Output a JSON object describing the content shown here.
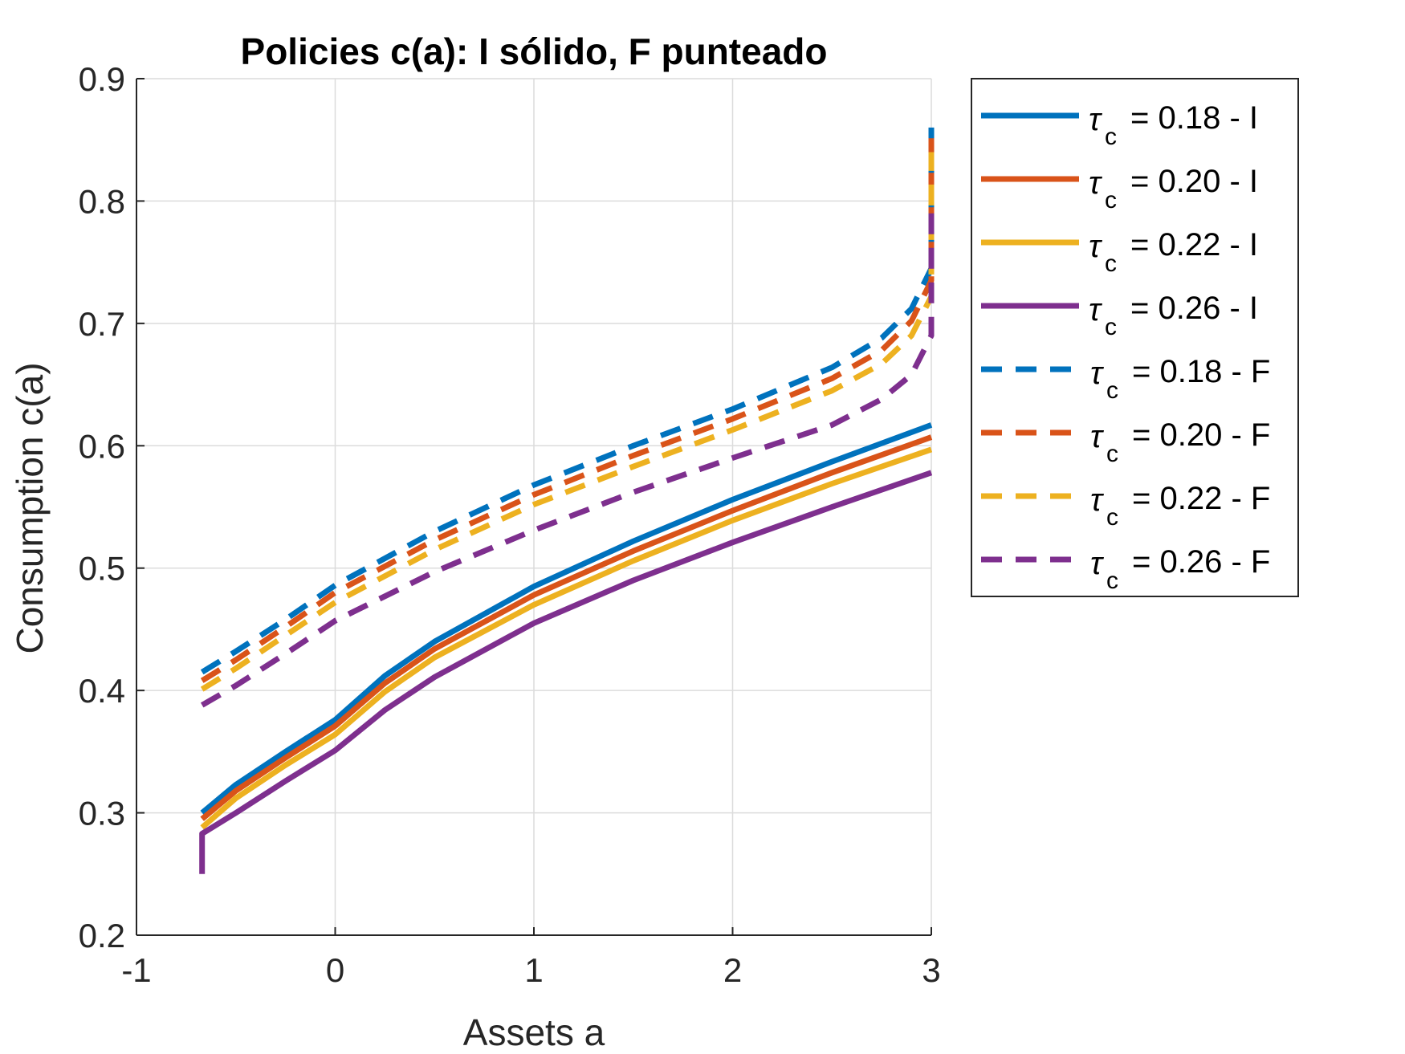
{
  "chart_data": {
    "type": "line",
    "title": "Policies c(a): I sólido, F punteado",
    "xlabel": "Assets a",
    "ylabel": "Consumption c(a)",
    "xlim": [
      -1,
      3
    ],
    "ylim": [
      0.2,
      0.9
    ],
    "xticks": [
      "-1",
      "0",
      "1",
      "2",
      "3"
    ],
    "yticks": [
      "0.2",
      "0.3",
      "0.4",
      "0.5",
      "0.6",
      "0.7",
      "0.8",
      "0.9"
    ],
    "grid": true,
    "legend_position": "outside-right",
    "legend_symbol": "τ",
    "legend_subscript": "c",
    "series": [
      {
        "name": "= 0.18 - I",
        "color": "#0072BD",
        "style": "solid",
        "x": [
          -0.67,
          -0.5,
          -0.25,
          0,
          0.25,
          0.5,
          1,
          1.5,
          2,
          2.5,
          3
        ],
        "y": [
          0.3,
          0.323,
          0.35,
          0.376,
          0.412,
          0.44,
          0.485,
          0.522,
          0.556,
          0.587,
          0.617
        ]
      },
      {
        "name": "= 0.20 - I",
        "color": "#D95319",
        "style": "solid",
        "x": [
          -0.67,
          -0.5,
          -0.25,
          0,
          0.25,
          0.5,
          1,
          1.5,
          2,
          2.5,
          3
        ],
        "y": [
          0.295,
          0.318,
          0.345,
          0.371,
          0.406,
          0.434,
          0.478,
          0.514,
          0.547,
          0.578,
          0.607
        ]
      },
      {
        "name": "= 0.22 - I",
        "color": "#EDB120",
        "style": "solid",
        "x": [
          -0.67,
          -0.5,
          -0.25,
          0,
          0.25,
          0.5,
          1,
          1.5,
          2,
          2.5,
          3
        ],
        "y": [
          0.288,
          0.312,
          0.339,
          0.364,
          0.399,
          0.427,
          0.47,
          0.506,
          0.539,
          0.569,
          0.597
        ]
      },
      {
        "name": "= 0.26 - I",
        "color": "#7E2F8E",
        "style": "solid",
        "x": [
          -0.67,
          -0.67,
          -0.5,
          -0.25,
          0,
          0.25,
          0.5,
          1,
          1.5,
          2,
          2.5,
          3
        ],
        "y": [
          0.25,
          0.283,
          0.3,
          0.326,
          0.351,
          0.384,
          0.411,
          0.455,
          0.49,
          0.521,
          0.55,
          0.578
        ]
      },
      {
        "name": "= 0.18 - F",
        "color": "#0072BD",
        "style": "dashed",
        "x": [
          -0.67,
          -0.5,
          -0.25,
          0,
          0.5,
          1,
          1.5,
          2,
          2.5,
          2.75,
          2.9,
          3,
          3
        ],
        "y": [
          0.415,
          0.432,
          0.458,
          0.486,
          0.53,
          0.568,
          0.6,
          0.63,
          0.664,
          0.688,
          0.712,
          0.745,
          0.865
        ]
      },
      {
        "name": "= 0.20 - F",
        "color": "#D95319",
        "style": "dashed",
        "x": [
          -0.67,
          -0.5,
          -0.25,
          0,
          0.5,
          1,
          1.5,
          2,
          2.5,
          2.75,
          2.9,
          3,
          3
        ],
        "y": [
          0.408,
          0.425,
          0.452,
          0.48,
          0.523,
          0.56,
          0.592,
          0.622,
          0.655,
          0.678,
          0.702,
          0.735,
          0.855
        ]
      },
      {
        "name": "= 0.22 - F",
        "color": "#EDB120",
        "style": "dashed",
        "x": [
          -0.67,
          -0.5,
          -0.25,
          0,
          0.5,
          1,
          1.5,
          2,
          2.5,
          2.75,
          2.9,
          3,
          3
        ],
        "y": [
          0.401,
          0.418,
          0.445,
          0.472,
          0.515,
          0.552,
          0.583,
          0.613,
          0.645,
          0.667,
          0.69,
          0.722,
          0.84
        ]
      },
      {
        "name": "= 0.26 - F",
        "color": "#7E2F8E",
        "style": "dashed",
        "x": [
          -0.67,
          -0.5,
          -0.25,
          0,
          0.5,
          1,
          1.5,
          2,
          2.5,
          2.75,
          2.9,
          3,
          3
        ],
        "y": [
          0.388,
          0.404,
          0.43,
          0.457,
          0.497,
          0.531,
          0.562,
          0.59,
          0.617,
          0.638,
          0.658,
          0.69,
          0.8
        ]
      }
    ]
  }
}
